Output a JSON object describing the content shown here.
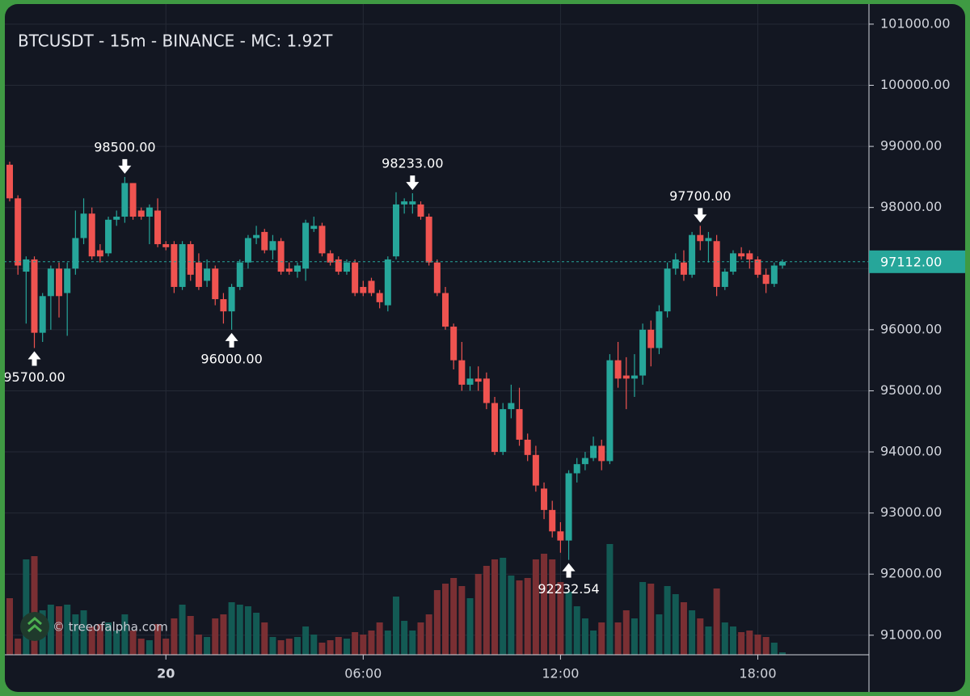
{
  "chart_data": {
    "type": "candlestick",
    "title": "BTCUSDT - 15m - BINANCE - MC: 1.92T",
    "watermark": "© treeofalpha.com",
    "x": [
      "19:15",
      "19:30",
      "19:45",
      "20:00",
      "20:15",
      "20:30",
      "20:45",
      "21:00",
      "21:15",
      "21:30",
      "21:45",
      "22:00",
      "22:15",
      "22:30",
      "22:45",
      "23:00",
      "23:15",
      "23:30",
      "23:45",
      "00:00",
      "00:15",
      "00:30",
      "00:45",
      "01:00",
      "01:15",
      "01:30",
      "01:45",
      "02:00",
      "02:15",
      "02:30",
      "02:45",
      "03:00",
      "03:15",
      "03:30",
      "03:45",
      "04:00",
      "04:15",
      "04:30",
      "04:45",
      "05:00",
      "05:15",
      "05:30",
      "05:45",
      "06:00",
      "06:15",
      "06:30",
      "06:45",
      "07:00",
      "07:15",
      "07:30",
      "07:45",
      "08:00",
      "08:15",
      "08:30",
      "08:45",
      "09:00",
      "09:15",
      "09:30",
      "09:45",
      "10:00",
      "10:15",
      "10:30",
      "10:45",
      "11:00",
      "11:15",
      "11:30",
      "11:45",
      "12:00",
      "12:15",
      "12:30",
      "12:45",
      "13:00",
      "13:15",
      "13:30",
      "13:45",
      "14:00",
      "14:15",
      "14:30",
      "14:45",
      "15:00",
      "15:15",
      "15:30",
      "15:45",
      "16:00",
      "16:15",
      "16:30",
      "16:45",
      "17:00",
      "17:15",
      "17:30",
      "17:45",
      "18:00",
      "18:15",
      "18:30",
      "18:45"
    ],
    "open": [
      98700,
      98150,
      96950,
      97150,
      95950,
      96550,
      97000,
      96600,
      97000,
      97500,
      97900,
      97300,
      97250,
      97800,
      97850,
      98400,
      97950,
      97850,
      97950,
      97400,
      97400,
      96700,
      97400,
      97100,
      96800,
      97000,
      96500,
      96300,
      96700,
      97100,
      97500,
      97600,
      97300,
      97450,
      97000,
      96950,
      97000,
      97650,
      97700,
      97250,
      97150,
      96950,
      97100,
      96700,
      96800,
      96600,
      96400,
      97200,
      98050,
      98050,
      98050,
      97850,
      97100,
      96600,
      96050,
      95500,
      95100,
      95200,
      95200,
      94800,
      94000,
      94700,
      94700,
      94200,
      93950,
      93400,
      93050,
      92700,
      92550,
      93650,
      93800,
      93900,
      94100,
      93850,
      95500,
      95250,
      95200,
      95250,
      96000,
      95700,
      96300,
      97000,
      97100,
      96900,
      97550,
      97450,
      97450,
      96700,
      96950,
      97250,
      97250,
      97150,
      96900,
      96750,
      97050
    ],
    "high": [
      98750,
      98200,
      97200,
      97200,
      96600,
      97050,
      97100,
      97100,
      97950,
      98150,
      98000,
      97400,
      97850,
      97950,
      98500,
      98400,
      98000,
      98050,
      98150,
      97450,
      97450,
      97450,
      97450,
      97250,
      97150,
      97050,
      96600,
      96750,
      97150,
      97550,
      97700,
      97650,
      97550,
      97500,
      97100,
      97100,
      97800,
      97850,
      97750,
      97300,
      97200,
      97150,
      97150,
      96800,
      96850,
      96650,
      97200,
      98250,
      98150,
      98233,
      98100,
      97900,
      97150,
      96700,
      96100,
      95800,
      95400,
      95400,
      95300,
      94900,
      94800,
      95100,
      95050,
      94300,
      94100,
      93500,
      93200,
      92850,
      93700,
      93900,
      94000,
      94250,
      94200,
      95600,
      95800,
      95550,
      95600,
      96100,
      96150,
      96400,
      97100,
      97250,
      97300,
      97600,
      97700,
      97600,
      97550,
      97000,
      97300,
      97350,
      97300,
      97200,
      97000,
      97100,
      97150
    ],
    "low": [
      98100,
      96900,
      96100,
      95700,
      95800,
      96000,
      96200,
      95900,
      96900,
      97400,
      97150,
      97100,
      97200,
      97700,
      97750,
      97800,
      97800,
      97400,
      97350,
      97300,
      96600,
      96650,
      96800,
      96650,
      96700,
      96400,
      96100,
      96000,
      96650,
      97000,
      97400,
      97250,
      97150,
      96900,
      96900,
      96850,
      96800,
      97600,
      97200,
      97050,
      96900,
      96900,
      96550,
      96550,
      96550,
      96350,
      96300,
      97150,
      97900,
      97900,
      97800,
      97050,
      96550,
      96000,
      95350,
      95000,
      95000,
      95000,
      94700,
      93950,
      93950,
      94550,
      94100,
      93850,
      93350,
      92900,
      92600,
      92350,
      92232.54,
      93500,
      93700,
      93850,
      93700,
      93800,
      95050,
      94700,
      94900,
      95100,
      95400,
      95600,
      96200,
      96900,
      96800,
      96850,
      97300,
      97100,
      96550,
      96650,
      96900,
      97150,
      97000,
      96850,
      96600,
      96700,
      97000
    ],
    "close": [
      98150,
      97050,
      97150,
      95950,
      96550,
      97000,
      96550,
      97000,
      97500,
      97900,
      97200,
      97200,
      97800,
      97850,
      98400,
      97850,
      97850,
      98000,
      97400,
      97350,
      96700,
      97400,
      96900,
      96700,
      97000,
      96500,
      96300,
      96700,
      97100,
      97500,
      97550,
      97300,
      97450,
      96950,
      96950,
      97050,
      97750,
      97700,
      97250,
      97100,
      96950,
      97100,
      96600,
      96600,
      96600,
      96450,
      97150,
      98050,
      98100,
      98100,
      97850,
      97100,
      96600,
      96050,
      95500,
      95100,
      95200,
      95150,
      94800,
      94000,
      94700,
      94800,
      94200,
      93950,
      93450,
      93050,
      92700,
      92550,
      93650,
      93800,
      93900,
      94100,
      93850,
      95500,
      95200,
      95200,
      95250,
      96000,
      95700,
      96300,
      97000,
      97150,
      96900,
      97550,
      97450,
      97500,
      96700,
      96950,
      97250,
      97200,
      97150,
      96900,
      96750,
      97050,
      97112
    ],
    "volume": [
      70,
      20,
      118,
      122,
      55,
      62,
      60,
      62,
      50,
      55,
      35,
      38,
      40,
      30,
      50,
      30,
      20,
      18,
      38,
      20,
      45,
      62,
      48,
      25,
      22,
      45,
      50,
      65,
      62,
      60,
      52,
      40,
      22,
      18,
      20,
      22,
      35,
      25,
      15,
      18,
      22,
      20,
      28,
      25,
      30,
      40,
      30,
      72,
      42,
      30,
      40,
      50,
      80,
      88,
      95,
      85,
      70,
      100,
      110,
      118,
      120,
      98,
      92,
      95,
      118,
      125,
      118,
      90,
      78,
      60,
      45,
      30,
      40,
      137,
      40,
      55,
      45,
      90,
      88,
      50,
      85,
      75,
      65,
      55,
      45,
      35,
      82,
      40,
      35,
      28,
      30,
      25,
      22,
      15,
      3
    ],
    "up_color": "#26a69a",
    "down_color": "#ef5350",
    "volume_up_color": "#135a54",
    "volume_down_color": "#7a2f33",
    "ylim": [
      90680,
      101290
    ],
    "yticks": [
      {
        "value": 91000,
        "label": "91000.00"
      },
      {
        "value": 92000,
        "label": "92000.00"
      },
      {
        "value": 93000,
        "label": "93000.00"
      },
      {
        "value": 94000,
        "label": "94000.00"
      },
      {
        "value": 95000,
        "label": "95000.00"
      },
      {
        "value": 96000,
        "label": "96000.00"
      },
      {
        "value": 97000,
        "label": "97000.00"
      },
      {
        "value": 98000,
        "label": "98000.00"
      },
      {
        "value": 99000,
        "label": "99000.00"
      },
      {
        "value": 100000,
        "label": "100000.00"
      },
      {
        "value": 101000,
        "label": "101000.00"
      }
    ],
    "xticks": [
      {
        "value": "00:00",
        "label": "20"
      },
      "06:00",
      "12:00",
      "18:00"
    ],
    "grid": true,
    "last_price": {
      "value": 97112,
      "label": "97112.00"
    },
    "annotations": [
      {
        "x": "20:00",
        "value": 95700,
        "label": "95700.00",
        "position": "below"
      },
      {
        "x": "22:45",
        "value": 98500,
        "label": "98500.00",
        "position": "above"
      },
      {
        "x": "02:00",
        "value": 96000,
        "label": "96000.00",
        "position": "below"
      },
      {
        "x": "07:30",
        "value": 98233,
        "label": "98233.00",
        "position": "above"
      },
      {
        "x": "12:15",
        "value": 92232.54,
        "label": "92232.54",
        "position": "below"
      },
      {
        "x": "16:15",
        "value": 97700,
        "label": "97700.00",
        "position": "above"
      }
    ]
  }
}
